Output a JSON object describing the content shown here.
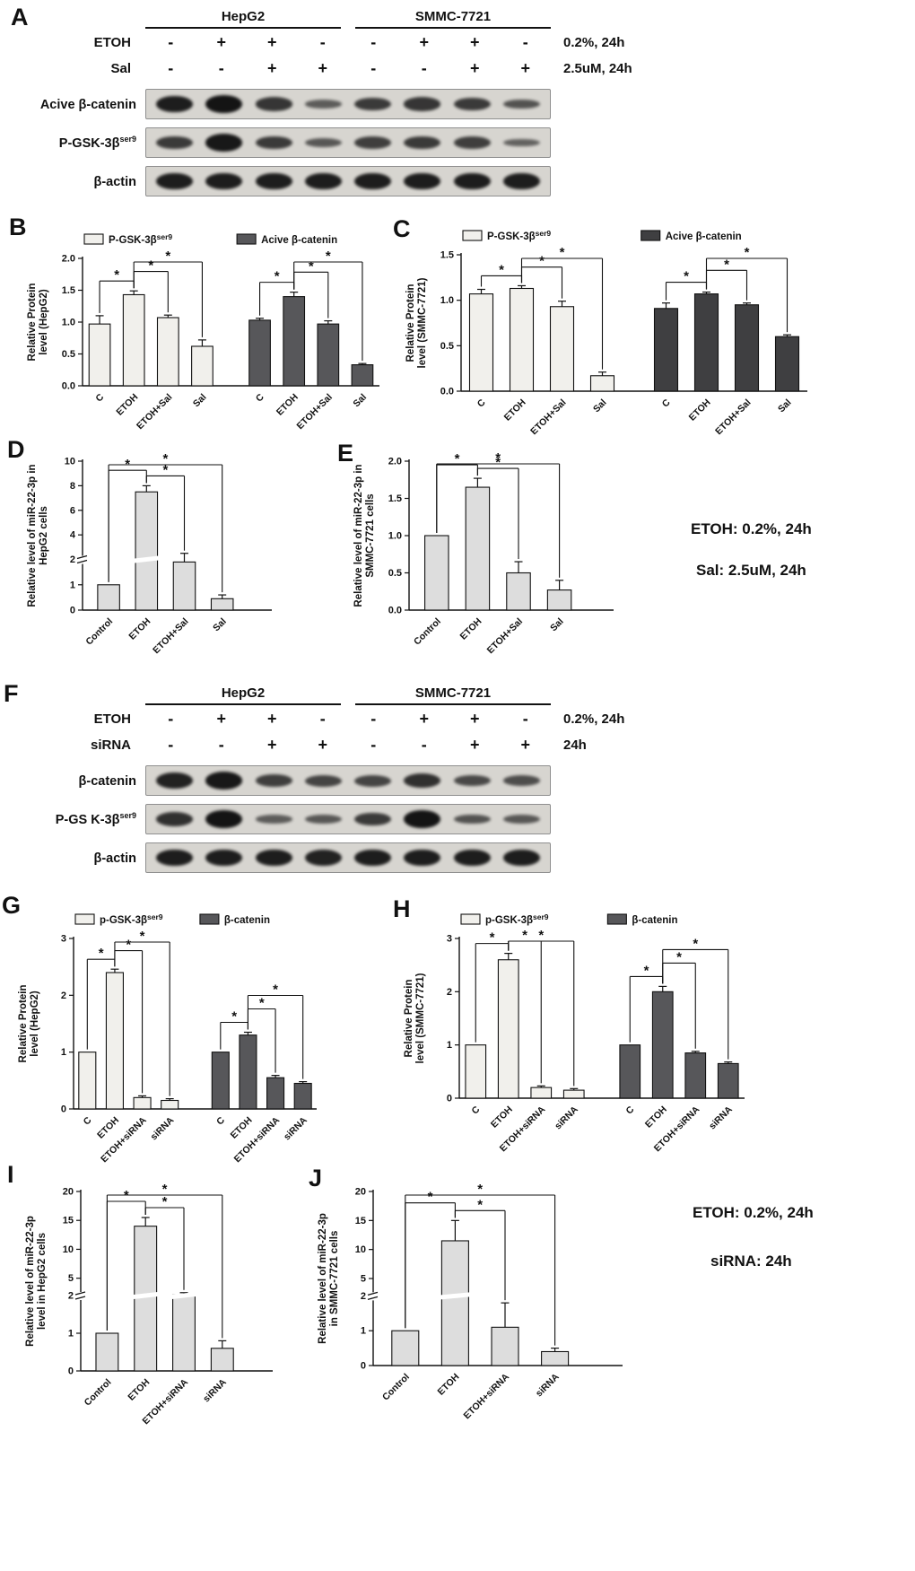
{
  "letters": {
    "A": "A",
    "B": "B",
    "C": "C",
    "D": "D",
    "E": "E",
    "F": "F",
    "G": "G",
    "H": "H",
    "I": "I",
    "J": "J"
  },
  "panelA": {
    "cell_lines": [
      "HepG2",
      "SMMC-7721"
    ],
    "condition_rows": [
      {
        "label": "ETOH",
        "signs": [
          "-",
          "+",
          "+",
          "-",
          "-",
          "+",
          "+",
          "-"
        ],
        "note": "0.2%, 24h"
      },
      {
        "label": "Sal",
        "signs": [
          "-",
          "-",
          "+",
          "+",
          "-",
          "-",
          "+",
          "+"
        ],
        "note": "2.5uM, 24h"
      }
    ],
    "blots": [
      {
        "label": "Acive β-catenin",
        "sup": "",
        "bands": [
          0.9,
          1.0,
          0.65,
          0.25,
          0.6,
          0.65,
          0.6,
          0.35
        ]
      },
      {
        "label": "P-GSK-3β",
        "sup": "ser9",
        "bands": [
          0.6,
          0.95,
          0.6,
          0.3,
          0.55,
          0.6,
          0.55,
          0.2
        ]
      },
      {
        "label": "β-actin",
        "sup": "",
        "bands": [
          0.9,
          0.9,
          0.9,
          0.9,
          0.9,
          0.9,
          0.9,
          0.9
        ]
      }
    ]
  },
  "panelF": {
    "cell_lines": [
      "HepG2",
      "SMMC-7721"
    ],
    "condition_rows": [
      {
        "label": "ETOH",
        "signs": [
          "-",
          "+",
          "+",
          "-",
          "-",
          "+",
          "+",
          "-"
        ],
        "note": "0.2%, 24h"
      },
      {
        "label": "siRNA",
        "signs": [
          "-",
          "-",
          "+",
          "+",
          "-",
          "-",
          "+",
          "+"
        ],
        "note": "24h"
      }
    ],
    "blots": [
      {
        "label": "β-catenin",
        "sup": "",
        "bands": [
          0.85,
          0.95,
          0.55,
          0.5,
          0.5,
          0.7,
          0.45,
          0.4
        ]
      },
      {
        "label": "P-GS K-3β",
        "sup": "ser9",
        "bands": [
          0.7,
          1.0,
          0.25,
          0.3,
          0.6,
          1.0,
          0.35,
          0.3
        ]
      },
      {
        "label": "β-actin",
        "sup": "",
        "bands": [
          0.9,
          0.9,
          0.9,
          0.85,
          0.9,
          0.9,
          0.9,
          0.9
        ]
      }
    ]
  },
  "notes_top": {
    "line1": "ETOH: 0.2%, 24h",
    "line2": "Sal: 2.5uM, 24h"
  },
  "notes_bottom": {
    "line1": "ETOH: 0.2%, 24h",
    "line2": "siRNA: 24h"
  },
  "chart_data": [
    {
      "id": "B",
      "type": "bar",
      "dec": 1,
      "ylim": [
        0,
        2.0
      ],
      "yticks": [
        0,
        0.5,
        1.0,
        1.5,
        2.0
      ],
      "ylabel": [
        "Relative Protein",
        "level (HepG2)"
      ],
      "categories": [
        "C",
        "ETOH",
        "ETOH+Sal",
        "Sal"
      ],
      "legend_position": "top",
      "grid": false,
      "series": [
        {
          "name": "P-GSK-3β",
          "sup": "ser9",
          "color": "#f1f0ec",
          "values": [
            0.97,
            1.43,
            1.07,
            0.62
          ],
          "errors": [
            0.13,
            0.06,
            0.04,
            0.1
          ],
          "sig": [
            {
              "a": 0,
              "b": 1,
              "label": "*",
              "r": 0
            },
            {
              "a": 1,
              "b": 2,
              "label": "*",
              "r": 1
            },
            {
              "a": 1,
              "b": 3,
              "label": "*",
              "r": 2
            }
          ]
        },
        {
          "name": "Acive β-catenin",
          "sup": "",
          "color": "#57575a",
          "values": [
            1.03,
            1.4,
            0.97,
            0.33
          ],
          "errors": [
            0.03,
            0.07,
            0.05,
            0.02
          ],
          "sig": [
            {
              "a": 0,
              "b": 1,
              "label": "*",
              "r": 0
            },
            {
              "a": 1,
              "b": 2,
              "label": "*",
              "r": 1
            },
            {
              "a": 1,
              "b": 3,
              "label": "*",
              "r": 2
            }
          ]
        }
      ]
    },
    {
      "id": "C",
      "type": "bar",
      "dec": 1,
      "ylim": [
        0,
        1.5
      ],
      "yticks": [
        0,
        0.5,
        1.0,
        1.5
      ],
      "ylabel": [
        "Relative Protein",
        "level (SMMC-7721)"
      ],
      "categories": [
        "C",
        "ETOH",
        "ETOH+Sal",
        "Sal"
      ],
      "legend_position": "top",
      "grid": false,
      "series": [
        {
          "name": "P-GSK-3β",
          "sup": "ser9",
          "color": "#f1f0ec",
          "values": [
            1.07,
            1.13,
            0.93,
            0.17
          ],
          "errors": [
            0.05,
            0.03,
            0.06,
            0.04
          ],
          "sig": [
            {
              "a": 0,
              "b": 1,
              "label": "*",
              "r": 0
            },
            {
              "a": 1,
              "b": 2,
              "label": "*",
              "r": 1
            },
            {
              "a": 1,
              "b": 3,
              "label": "*",
              "r": 2
            }
          ]
        },
        {
          "name": "Acive β-catenin",
          "sup": "",
          "color": "#3f3f41",
          "values": [
            0.91,
            1.07,
            0.95,
            0.6
          ],
          "errors": [
            0.06,
            0.02,
            0.02,
            0.02
          ],
          "sig": [
            {
              "a": 0,
              "b": 1,
              "label": "*",
              "r": 0
            },
            {
              "a": 1,
              "b": 2,
              "label": "*",
              "r": 1
            },
            {
              "a": 1,
              "b": 3,
              "label": "*",
              "r": 2
            }
          ]
        }
      ]
    },
    {
      "id": "D",
      "type": "bar",
      "dec": 0,
      "ylabel": [
        "Relative level of miR-22-3p in",
        "HepG2 cells"
      ],
      "categories": [
        "Control",
        "ETOH",
        "ETOH+Sal",
        "Sal"
      ],
      "grid": false,
      "ybreak": {
        "lower_max": 2,
        "lower_ticks": [
          0,
          1,
          2
        ],
        "upper_max": 10,
        "upper_ticks": [
          4,
          6,
          8,
          10
        ],
        "lower_frac": 0.34
      },
      "series": [
        {
          "name": "miR-22-3p",
          "sup": "",
          "color": "#dddddd",
          "values": [
            1.0,
            7.5,
            1.9,
            0.45
          ],
          "errors": [
            0,
            0.5,
            0.6,
            0.15
          ],
          "sig": [
            {
              "a": 0,
              "b": 1,
              "label": "*",
              "r": 1
            },
            {
              "a": 1,
              "b": 2,
              "label": "*",
              "r": 0
            },
            {
              "a": 0,
              "b": 3,
              "label": "*",
              "r": 2
            }
          ]
        }
      ]
    },
    {
      "id": "E",
      "type": "bar",
      "dec": 1,
      "ylim": [
        0,
        2.0
      ],
      "yticks": [
        0,
        0.5,
        1.0,
        1.5,
        2.0
      ],
      "ylabel": [
        "Relative level of miR-22-3p in",
        "SMMC-7721 cells"
      ],
      "categories": [
        "Control",
        "ETOH",
        "ETOH+Sal",
        "Sal"
      ],
      "grid": false,
      "series": [
        {
          "name": "miR-22-3p",
          "sup": "",
          "color": "#dddddd",
          "values": [
            1.0,
            1.65,
            0.5,
            0.27
          ],
          "errors": [
            0,
            0.12,
            0.15,
            0.13
          ],
          "sig": [
            {
              "a": 0,
              "b": 1,
              "label": "*",
              "r": 1
            },
            {
              "a": 1,
              "b": 2,
              "label": "*",
              "r": 0
            },
            {
              "a": 0,
              "b": 3,
              "label": "*",
              "r": 2
            }
          ]
        }
      ]
    },
    {
      "id": "G",
      "type": "bar",
      "dec": 0,
      "ylim": [
        0,
        3
      ],
      "yticks": [
        0,
        1,
        2,
        3
      ],
      "ylabel": [
        "Relative Protein",
        "level (HepG2)"
      ],
      "categories": [
        "C",
        "ETOH",
        "ETOH+siRNA",
        "siRNA"
      ],
      "legend_position": "top",
      "grid": false,
      "series": [
        {
          "name": "p-GSK-3β",
          "sup": "ser9",
          "color": "#f1f0ec",
          "values": [
            1.0,
            2.4,
            0.2,
            0.15
          ],
          "errors": [
            0,
            0.06,
            0.03,
            0.03
          ],
          "sig": [
            {
              "a": 0,
              "b": 1,
              "label": "*",
              "r": 0
            },
            {
              "a": 1,
              "b": 2,
              "label": "*",
              "r": 1
            },
            {
              "a": 1,
              "b": 3,
              "label": "*",
              "r": 2
            }
          ]
        },
        {
          "name": "β-catenin",
          "sup": "",
          "color": "#57575a",
          "values": [
            1.0,
            1.3,
            0.55,
            0.45
          ],
          "errors": [
            0,
            0.05,
            0.04,
            0.03
          ],
          "sig": [
            {
              "a": 0,
              "b": 1,
              "label": "*",
              "r": 0
            },
            {
              "a": 1,
              "b": 2,
              "label": "*",
              "r": 1
            },
            {
              "a": 1,
              "b": 3,
              "label": "*",
              "r": 2
            }
          ]
        }
      ]
    },
    {
      "id": "H",
      "type": "bar",
      "dec": 0,
      "ylim": [
        0,
        3
      ],
      "yticks": [
        0,
        1,
        2,
        3
      ],
      "ylabel": [
        "Relative Protein",
        "level (SMMC-7721)"
      ],
      "categories": [
        "C",
        "ETOH",
        "ETOH+siRNA",
        "siRNA"
      ],
      "legend_position": "top",
      "grid": false,
      "series": [
        {
          "name": "p-GSK-3β",
          "sup": "ser9",
          "color": "#f1f0ec",
          "values": [
            1.0,
            2.6,
            0.2,
            0.15
          ],
          "errors": [
            0,
            0.12,
            0.03,
            0.03
          ],
          "sig": [
            {
              "a": 0,
              "b": 1,
              "label": "*",
              "r": 0
            },
            {
              "a": 1,
              "b": 2,
              "label": "*",
              "r": 1
            },
            {
              "a": 1,
              "b": 3,
              "label": "*",
              "r": 2
            }
          ]
        },
        {
          "name": "β-catenin",
          "sup": "",
          "color": "#57575a",
          "values": [
            1.0,
            2.0,
            0.85,
            0.65
          ],
          "errors": [
            0,
            0.1,
            0.03,
            0.03
          ],
          "sig": [
            {
              "a": 0,
              "b": 1,
              "label": "*",
              "r": 0
            },
            {
              "a": 1,
              "b": 2,
              "label": "*",
              "r": 1
            },
            {
              "a": 1,
              "b": 3,
              "label": "*",
              "r": 2
            }
          ]
        }
      ]
    },
    {
      "id": "I",
      "type": "bar",
      "dec": 0,
      "ylabel": [
        "Relative level of miR-22-3p",
        "level in HepG2 cells"
      ],
      "categories": [
        "Control",
        "ETOH",
        "ETOH+siRNA",
        "siRNA"
      ],
      "grid": false,
      "ybreak": {
        "lower_max": 2,
        "lower_ticks": [
          0,
          1,
          2
        ],
        "upper_max": 20,
        "upper_ticks": [
          5,
          10,
          15,
          20
        ],
        "lower_frac": 0.42
      },
      "series": [
        {
          "name": "miR-22-3p",
          "sup": "",
          "color": "#dddddd",
          "values": [
            1.0,
            14,
            2.1,
            0.6
          ],
          "errors": [
            0,
            1.5,
            0.4,
            0.2
          ],
          "sig": [
            {
              "a": 0,
              "b": 1,
              "label": "*",
              "r": 1
            },
            {
              "a": 1,
              "b": 2,
              "label": "*",
              "r": 0
            },
            {
              "a": 0,
              "b": 3,
              "label": "*",
              "r": 2
            }
          ]
        }
      ]
    },
    {
      "id": "J",
      "type": "bar",
      "dec": 0,
      "ylabel": [
        "Relative level of miR-22-3p",
        "in SMMC-7721 cells"
      ],
      "categories": [
        "Control",
        "ETOH",
        "ETOH+siRNA",
        "siRNA"
      ],
      "grid": false,
      "ybreak": {
        "lower_max": 2,
        "lower_ticks": [
          0,
          1,
          2
        ],
        "upper_max": 20,
        "upper_ticks": [
          5,
          10,
          15,
          20
        ],
        "lower_frac": 0.4
      },
      "series": [
        {
          "name": "miR-22-3p",
          "sup": "",
          "color": "#dddddd",
          "values": [
            1.0,
            11.5,
            1.1,
            0.4
          ],
          "errors": [
            0,
            3.5,
            0.7,
            0.1
          ],
          "sig": [
            {
              "a": 0,
              "b": 1,
              "label": "*",
              "r": 1
            },
            {
              "a": 1,
              "b": 2,
              "label": "*",
              "r": 0
            },
            {
              "a": 0,
              "b": 3,
              "label": "*",
              "r": 2
            }
          ]
        }
      ]
    }
  ]
}
